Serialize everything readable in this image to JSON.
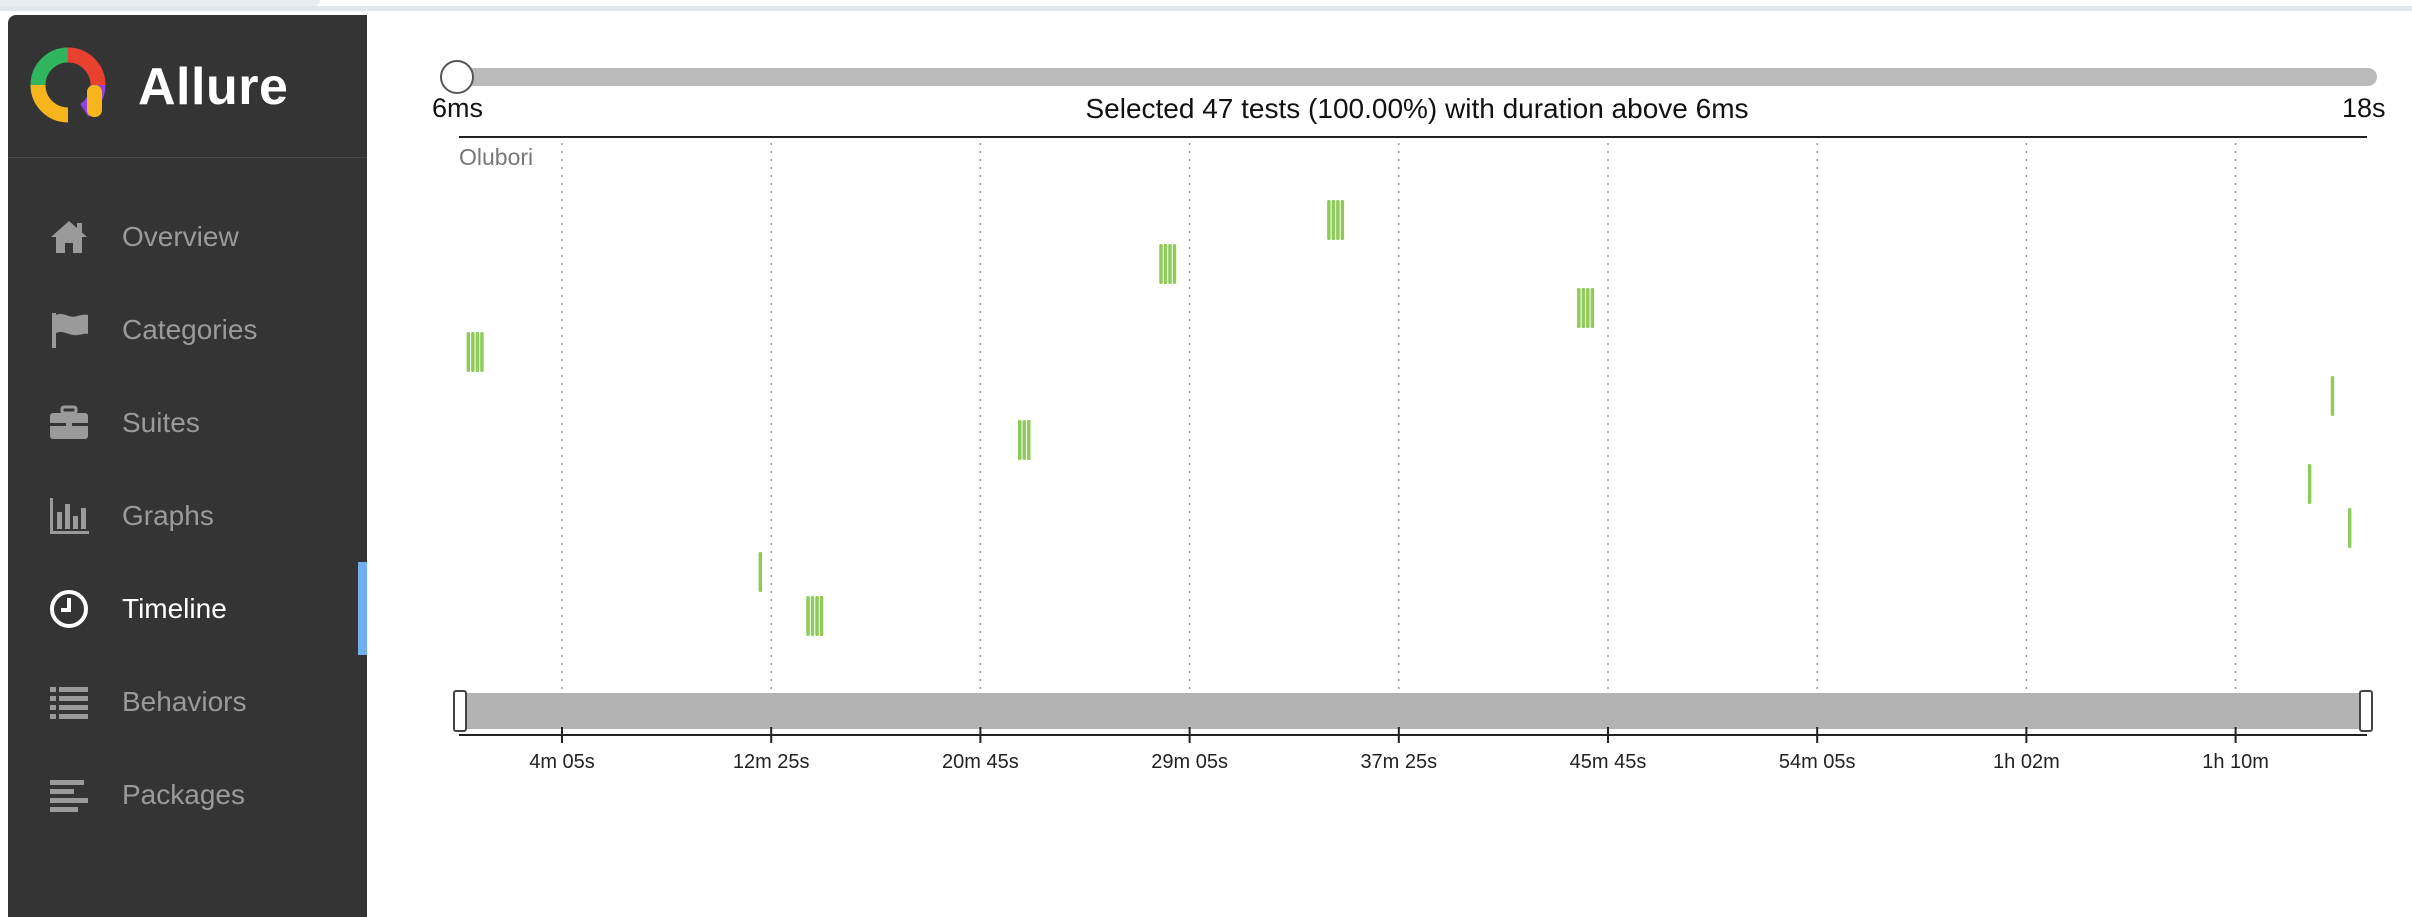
{
  "app": {
    "name": "Allure",
    "accent_color": "#6eb0f0",
    "sidebar_color": "#343434"
  },
  "sidebar": {
    "items": [
      {
        "label": "Overview",
        "icon": "home-icon",
        "active": false
      },
      {
        "label": "Categories",
        "icon": "flag-icon",
        "active": false
      },
      {
        "label": "Suites",
        "icon": "briefcase-icon",
        "active": false
      },
      {
        "label": "Graphs",
        "icon": "bar-chart-icon",
        "active": false
      },
      {
        "label": "Timeline",
        "icon": "clock-icon",
        "active": true
      },
      {
        "label": "Behaviors",
        "icon": "list-icon",
        "active": false
      },
      {
        "label": "Packages",
        "icon": "align-left-icon",
        "active": false
      }
    ]
  },
  "duration_filter": {
    "min_label": "6ms",
    "max_label": "18s",
    "caption": "Selected 47 tests (100.00%) with duration above 6ms",
    "value_fraction": 0.0
  },
  "timeline": {
    "row_label": "Olubori",
    "bar_color": "#8fcb58",
    "ticks": [
      "4m 05s",
      "12m 25s",
      "20m 45s",
      "29m 05s",
      "37m 25s",
      "45m 45s",
      "54m 05s",
      "1h 02m",
      "1h 10m"
    ],
    "brush_range": [
      0.0,
      1.0
    ],
    "clusters": [
      {
        "x": 0.004,
        "lane": 4,
        "count": 4
      },
      {
        "x": 0.157,
        "lane": 9,
        "count": 1
      },
      {
        "x": 0.182,
        "lane": 10,
        "count": 4
      },
      {
        "x": 0.293,
        "lane": 6,
        "count": 3
      },
      {
        "x": 0.367,
        "lane": 2,
        "count": 4
      },
      {
        "x": 0.455,
        "lane": 1,
        "count": 4
      },
      {
        "x": 0.586,
        "lane": 3,
        "count": 4
      },
      {
        "x": 0.969,
        "lane": 7,
        "count": 1
      },
      {
        "x": 0.981,
        "lane": 5,
        "count": 1
      },
      {
        "x": 0.99,
        "lane": 8,
        "count": 1
      }
    ]
  }
}
